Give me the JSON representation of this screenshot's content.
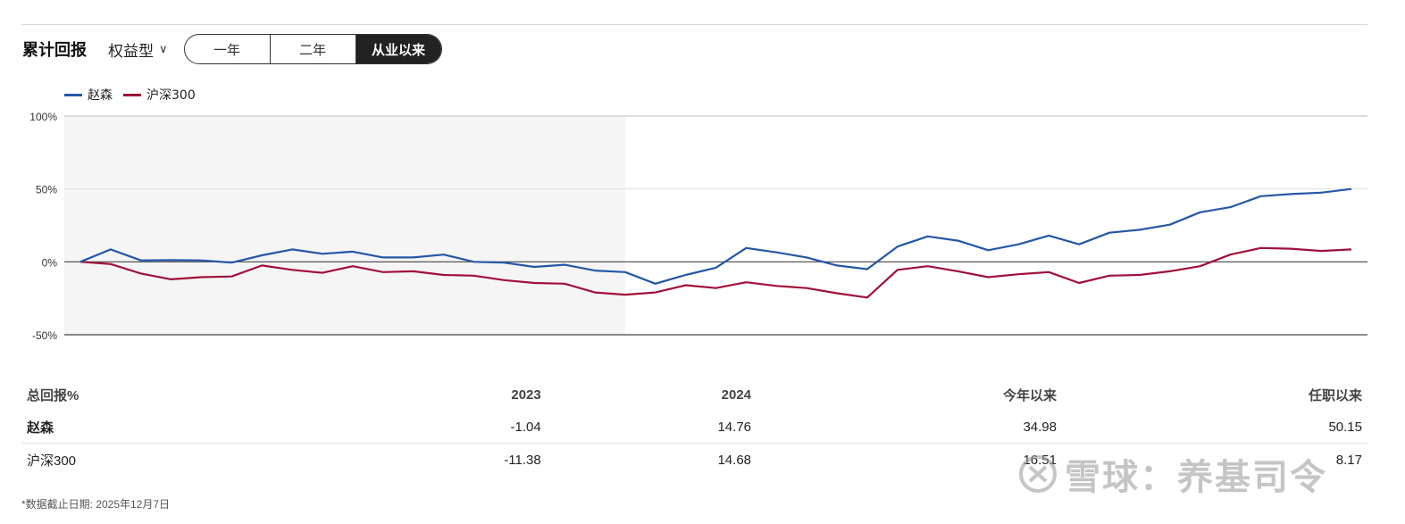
{
  "header": {
    "title": "累计回报",
    "type_select": "权益型",
    "tabs": [
      "一年",
      "二年",
      "从业以来"
    ],
    "active_tab": 2
  },
  "legend": [
    {
      "name": "赵森",
      "color": "#2557a7"
    },
    {
      "name": "沪深300",
      "color": "#a0103a"
    }
  ],
  "chart_data": {
    "type": "line",
    "y_ticks": [
      "100%",
      "50%",
      "0%",
      "-50%"
    ],
    "ylim": [
      -50,
      100
    ],
    "grid": true,
    "legend_position": "top-left",
    "x_count": 43,
    "shaded_range": [
      0,
      18
    ],
    "series": [
      {
        "name": "赵森",
        "color": "#2557a7",
        "values": [
          0,
          8.5,
          1,
          1.2,
          1,
          -0.5,
          4.5,
          8.5,
          5.5,
          7,
          3,
          3,
          5,
          0,
          -0.5,
          -3.5,
          -2,
          -6,
          -7,
          -15,
          -9,
          -4,
          9.5,
          6.5,
          3,
          -2.5,
          -5,
          10.5,
          17.5,
          14.5,
          8,
          12,
          18,
          12,
          20,
          22,
          25.5,
          34,
          37.5,
          45,
          46.5,
          47.5,
          50
        ]
      },
      {
        "name": "沪深300",
        "color": "#a0103a",
        "values": [
          0,
          -1.5,
          -8,
          -12,
          -10.5,
          -10,
          -2.5,
          -5.5,
          -7.5,
          -3,
          -7,
          -6.5,
          -9,
          -9.5,
          -12.5,
          -14.5,
          -15,
          -21,
          -22.5,
          -21,
          -16,
          -18,
          -14,
          -16.5,
          -18,
          -21.5,
          -24.5,
          -5.5,
          -3,
          -6.5,
          -10.5,
          -8.5,
          -7,
          -14.5,
          -9.5,
          -9,
          -6.5,
          -3,
          5,
          9.5,
          9,
          7.5,
          8.5
        ]
      }
    ]
  },
  "table": {
    "headers": [
      "总回报%",
      "2023",
      "2024",
      "今年以来",
      "任职以来"
    ],
    "rows": [
      {
        "name": "赵森",
        "values": [
          "-1.04",
          "14.76",
          "34.98",
          "50.15"
        ]
      },
      {
        "name": "沪深300",
        "values": [
          "-11.38",
          "14.68",
          "16.51",
          "8.17"
        ]
      }
    ]
  },
  "footnote": "*数据截止日期: 2025年12月7日",
  "watermark": "雪球：养基司令"
}
